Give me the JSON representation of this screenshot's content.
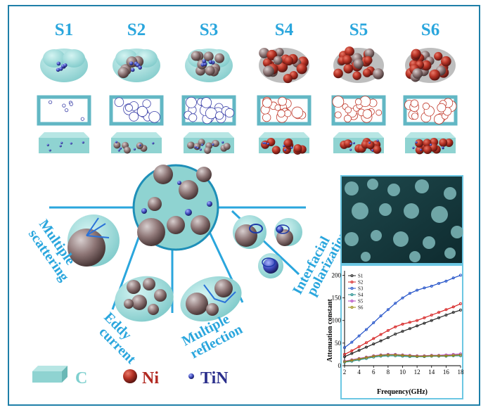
{
  "samples": [
    "S1",
    "S2",
    "S3",
    "S4",
    "S5",
    "S6"
  ],
  "mechanisms": {
    "scattering_line1": "Multiple",
    "scattering_line2": "scattering",
    "eddy_line1": "Eddy",
    "eddy_line2": "current",
    "reflection_line1": "Multiple",
    "reflection_line2": "reflection",
    "interfacial_line1": "Interfacial",
    "interfacial_line2": "polarization"
  },
  "legend": {
    "carbon": "C",
    "nickel": "Ni",
    "titanium_nitride": "TiN"
  },
  "colors": {
    "accent": "#2aa6dd",
    "carbon": "#8fd3d1",
    "nickel": "#c0392b",
    "tin": "#3a3fa8",
    "border": "#5cb8d9"
  },
  "chart_data": {
    "type": "line",
    "xlabel": "Frequency(GHz)",
    "ylabel": "Attenuation constant",
    "xlim": [
      2,
      18
    ],
    "ylim": [
      0,
      210
    ],
    "xticks": [
      2,
      4,
      6,
      8,
      10,
      12,
      14,
      16,
      18
    ],
    "yticks": [
      0,
      50,
      100,
      150,
      200
    ],
    "legend_position": "top-left",
    "x": [
      2,
      3,
      4,
      5,
      6,
      7,
      8,
      9,
      10,
      11,
      12,
      13,
      14,
      15,
      16,
      17,
      18
    ],
    "series": [
      {
        "name": "S1",
        "color": "#222222",
        "values": [
          20,
          27,
          34,
          41,
          48,
          55,
          62,
          70,
          76,
          82,
          88,
          94,
          100,
          106,
          112,
          118,
          123
        ]
      },
      {
        "name": "S2",
        "color": "#d62020",
        "values": [
          25,
          33,
          42,
          51,
          60,
          69,
          78,
          86,
          92,
          96,
          100,
          106,
          112,
          118,
          124,
          130,
          137
        ]
      },
      {
        "name": "S3",
        "color": "#2050c8",
        "values": [
          40,
          52,
          66,
          80,
          95,
          110,
          124,
          138,
          150,
          160,
          167,
          172,
          176,
          182,
          187,
          194,
          200
        ]
      },
      {
        "name": "S4",
        "color": "#1a8a8a",
        "values": [
          8,
          10,
          13,
          16,
          19,
          21,
          22,
          22,
          21,
          20,
          20,
          20,
          21,
          21,
          21,
          22,
          22
        ]
      },
      {
        "name": "S5",
        "color": "#b040c0",
        "values": [
          10,
          13,
          16,
          19,
          22,
          24,
          25,
          25,
          24,
          23,
          22,
          22,
          23,
          23,
          24,
          25,
          26
        ]
      },
      {
        "name": "S6",
        "color": "#9a8a10",
        "values": [
          9,
          12,
          15,
          18,
          21,
          23,
          24,
          24,
          23,
          22,
          21,
          21,
          22,
          22,
          22,
          23,
          24
        ]
      }
    ]
  }
}
